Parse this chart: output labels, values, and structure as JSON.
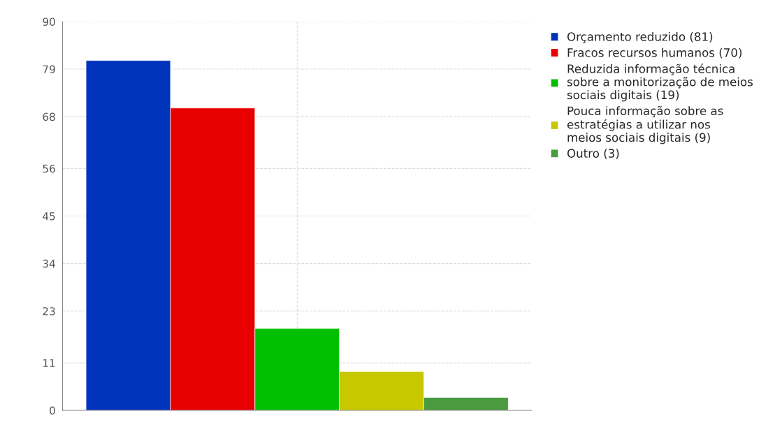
{
  "chart_data": {
    "type": "bar",
    "categories": [
      null
    ],
    "series": [
      {
        "name": "Orçamento reduzido (81)",
        "color": "#0033bb",
        "values": [
          81
        ]
      },
      {
        "name": "Fracos recursos humanos (70)",
        "color": "#e80000",
        "values": [
          70
        ]
      },
      {
        "name": "Reduzida informação técnica\nsobre a monitorização de meios\nsociais digitais (19)",
        "color": "#00c000",
        "values": [
          19
        ]
      },
      {
        "name": "Pouca informação sobre as\nestratégias a utilizar nos\nmeios sociais digitais (9)",
        "color": "#c8c800",
        "values": [
          9
        ]
      },
      {
        "name": "Outro (3)",
        "color": "#4a9a40",
        "values": [
          3
        ]
      }
    ],
    "ylim": [
      0,
      90
    ],
    "yticks": [
      0,
      11,
      23,
      34,
      45,
      56,
      68,
      79,
      90
    ],
    "grid": true,
    "legend": "top right"
  }
}
